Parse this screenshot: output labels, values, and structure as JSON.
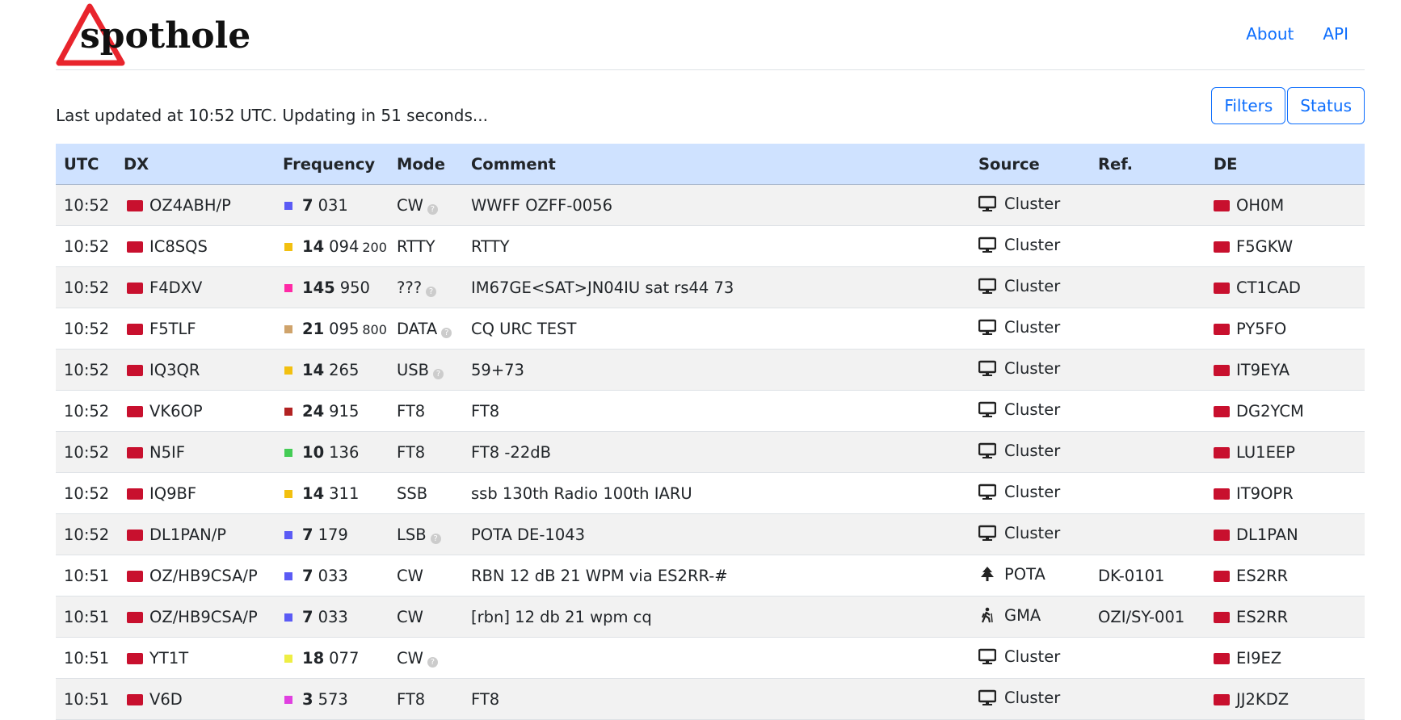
{
  "header": {
    "logo": "spothole",
    "nav": [
      "About",
      "API"
    ]
  },
  "status": "Last updated at 10:52 UTC. Updating in 51 seconds...",
  "buttons": [
    "Filters",
    "Status"
  ],
  "table": {
    "columns": [
      "UTC",
      "DX",
      "Frequency",
      "Mode",
      "Comment",
      "Source",
      "Ref.",
      "DE"
    ],
    "rows": [
      {
        "utc": "10:52",
        "dx": "OZ4ABH/P",
        "mhz": "7",
        "khz": "031",
        "sub": null,
        "band_color": "#5b5bf5",
        "mode": "CW",
        "mode_help": true,
        "comment": "WWFF OZFF-0056",
        "source": "Cluster",
        "icon": "monitor",
        "ref": null,
        "de": "OH0M"
      },
      {
        "utc": "10:52",
        "dx": "IC8SQS",
        "mhz": "14",
        "khz": "094",
        "sub": "200",
        "band_color": "#f2c010",
        "mode": "RTTY",
        "mode_help": false,
        "comment": "RTTY",
        "source": "Cluster",
        "icon": "monitor",
        "ref": null,
        "de": "F5GKW"
      },
      {
        "utc": "10:52",
        "dx": "F4DXV",
        "mhz": "145",
        "khz": "950",
        "sub": null,
        "band_color": "#ff2aa6",
        "mode": "???",
        "mode_help": true,
        "comment": "IM67GE<SAT>JN04IU sat rs44 73",
        "source": "Cluster",
        "icon": "monitor",
        "ref": null,
        "de": "CT1CAD"
      },
      {
        "utc": "10:52",
        "dx": "F5TLF",
        "mhz": "21",
        "khz": "095",
        "sub": "800",
        "band_color": "#cfa36b",
        "mode": "DATA",
        "mode_help": true,
        "comment": "CQ URC TEST",
        "source": "Cluster",
        "icon": "monitor",
        "ref": null,
        "de": "PY5FO"
      },
      {
        "utc": "10:52",
        "dx": "IQ3QR",
        "mhz": "14",
        "khz": "265",
        "sub": null,
        "band_color": "#f2c010",
        "mode": "USB",
        "mode_help": true,
        "comment": "59+73",
        "source": "Cluster",
        "icon": "monitor",
        "ref": null,
        "de": "IT9EYA"
      },
      {
        "utc": "10:52",
        "dx": "VK6OP",
        "mhz": "24",
        "khz": "915",
        "sub": null,
        "band_color": "#b22222",
        "mode": "FT8",
        "mode_help": false,
        "comment": "FT8",
        "source": "Cluster",
        "icon": "monitor",
        "ref": null,
        "de": "DG2YCM"
      },
      {
        "utc": "10:52",
        "dx": "N5IF",
        "mhz": "10",
        "khz": "136",
        "sub": null,
        "band_color": "#44cc55",
        "mode": "FT8",
        "mode_help": false,
        "comment": "FT8 -22dB",
        "source": "Cluster",
        "icon": "monitor",
        "ref": null,
        "de": "LU1EEP"
      },
      {
        "utc": "10:52",
        "dx": "IQ9BF",
        "mhz": "14",
        "khz": "311",
        "sub": null,
        "band_color": "#f2c010",
        "mode": "SSB",
        "mode_help": false,
        "comment": "ssb 130th Radio 100th IARU",
        "source": "Cluster",
        "icon": "monitor",
        "ref": null,
        "de": "IT9OPR"
      },
      {
        "utc": "10:52",
        "dx": "DL1PAN/P",
        "mhz": "7",
        "khz": "179",
        "sub": null,
        "band_color": "#5b5bf5",
        "mode": "LSB",
        "mode_help": true,
        "comment": "POTA DE-1043",
        "source": "Cluster",
        "icon": "monitor",
        "ref": null,
        "de": "DL1PAN"
      },
      {
        "utc": "10:51",
        "dx": "OZ/HB9CSA/P",
        "mhz": "7",
        "khz": "033",
        "sub": null,
        "band_color": "#5b5bf5",
        "mode": "CW",
        "mode_help": false,
        "comment": "RBN 12 dB 21 WPM via ES2RR-#",
        "source": "POTA",
        "icon": "tree",
        "ref": "DK-0101",
        "de": "ES2RR"
      },
      {
        "utc": "10:51",
        "dx": "OZ/HB9CSA/P",
        "mhz": "7",
        "khz": "033",
        "sub": null,
        "band_color": "#5b5bf5",
        "mode": "CW",
        "mode_help": false,
        "comment": "[rbn] 12 db 21 wpm cq",
        "source": "GMA",
        "icon": "hiker",
        "ref": "OZI/SY-001",
        "de": "ES2RR"
      },
      {
        "utc": "10:51",
        "dx": "YT1T",
        "mhz": "18",
        "khz": "077",
        "sub": null,
        "band_color": "#eeee44",
        "mode": "CW",
        "mode_help": true,
        "comment": null,
        "source": "Cluster",
        "icon": "monitor",
        "ref": null,
        "de": "EI9EZ"
      },
      {
        "utc": "10:51",
        "dx": "V6D",
        "mhz": "3",
        "khz": "573",
        "sub": null,
        "band_color": "#e040e0",
        "mode": "FT8",
        "mode_help": false,
        "comment": "FT8",
        "source": "Cluster",
        "icon": "monitor",
        "ref": null,
        "de": "JJ2KDZ"
      }
    ]
  }
}
